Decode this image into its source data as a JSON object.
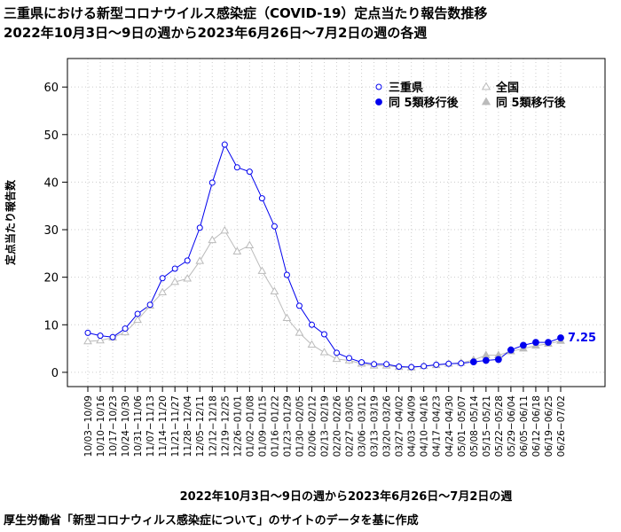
{
  "header": {
    "title_line1": "三重県における新型コロナウイルス感染症（COVID-19）定点当たり報告数推移",
    "title_line2": "2022年10月3日～9日の週から2023年6月26日～7月2日の週の各週"
  },
  "footer": {
    "xlabel": "2022年10月3日～9日の週から2023年6月26日～7月2日の週",
    "source": "厚生労働省「新型コロナウィルス感染症について」のサイトのデータを基に作成"
  },
  "colors": {
    "mie": "#0000ee",
    "national": "#bbbbbb",
    "grid": "#cccccc"
  },
  "chart_data": {
    "type": "line",
    "ylabel": "定点当たり報告数",
    "xlabel": "2022年10月3日～9日の週から2023年6月26日～7月2日の週",
    "ylim": [
      -3,
      66
    ],
    "yticks": [
      0,
      10,
      20,
      30,
      40,
      50,
      60
    ],
    "grid": true,
    "legend_position": "top-right",
    "categories": [
      "10/03−10/09",
      "10/10−10/16",
      "10/17−10/23",
      "10/24−10/30",
      "10/31−11/06",
      "11/07−11/13",
      "11/14−11/20",
      "11/21−11/27",
      "11/28−12/04",
      "12/05−12/11",
      "12/12−12/18",
      "12/19−12/25",
      "12/26−01/01",
      "01/02−01/08",
      "01/09−01/15",
      "01/16−01/22",
      "01/23−01/29",
      "01/30−02/05",
      "02/06−02/12",
      "02/13−02/19",
      "02/20−02/26",
      "02/27−03/05",
      "03/06−03/12",
      "03/13−03/19",
      "03/20−03/26",
      "03/27−04/02",
      "04/03−04/09",
      "04/10−04/16",
      "04/17−04/23",
      "04/24−04/30",
      "05/01−05/07",
      "05/08−05/14",
      "05/15−05/21",
      "05/22−05/28",
      "05/29−06/04",
      "06/05−06/11",
      "06/12−06/18",
      "06/19−06/25",
      "06/26−07/02"
    ],
    "split_index": 31,
    "series": [
      {
        "name": "三重県",
        "post_name": "同 5類移行後",
        "marker": "circle",
        "values": [
          8.3,
          7.7,
          7.4,
          9.2,
          12.3,
          14.2,
          19.8,
          21.8,
          23.5,
          30.4,
          39.9,
          47.9,
          43.1,
          42.2,
          36.6,
          30.7,
          20.5,
          14.0,
          10.0,
          8.0,
          4.1,
          3.0,
          2.1,
          1.7,
          1.7,
          1.2,
          1.1,
          1.3,
          1.6,
          1.8,
          1.9,
          2.2,
          2.5,
          2.7,
          4.7,
          5.7,
          6.3,
          6.3,
          7.25
        ]
      },
      {
        "name": "全国",
        "post_name": "同 5類移行後",
        "marker": "triangle",
        "values": [
          6.5,
          6.7,
          7.3,
          8.4,
          11.0,
          14.0,
          16.8,
          19.0,
          19.7,
          23.4,
          27.8,
          29.8,
          25.4,
          26.7,
          21.3,
          17.0,
          11.4,
          8.3,
          5.8,
          4.2,
          2.8,
          2.5,
          1.8,
          1.4,
          1.4,
          1.1,
          1.0,
          1.3,
          1.5,
          1.8,
          2.0,
          2.6,
          3.6,
          3.6,
          4.4,
          5.0,
          5.6,
          6.0,
          6.6
        ]
      }
    ],
    "annotation": "7.25"
  }
}
